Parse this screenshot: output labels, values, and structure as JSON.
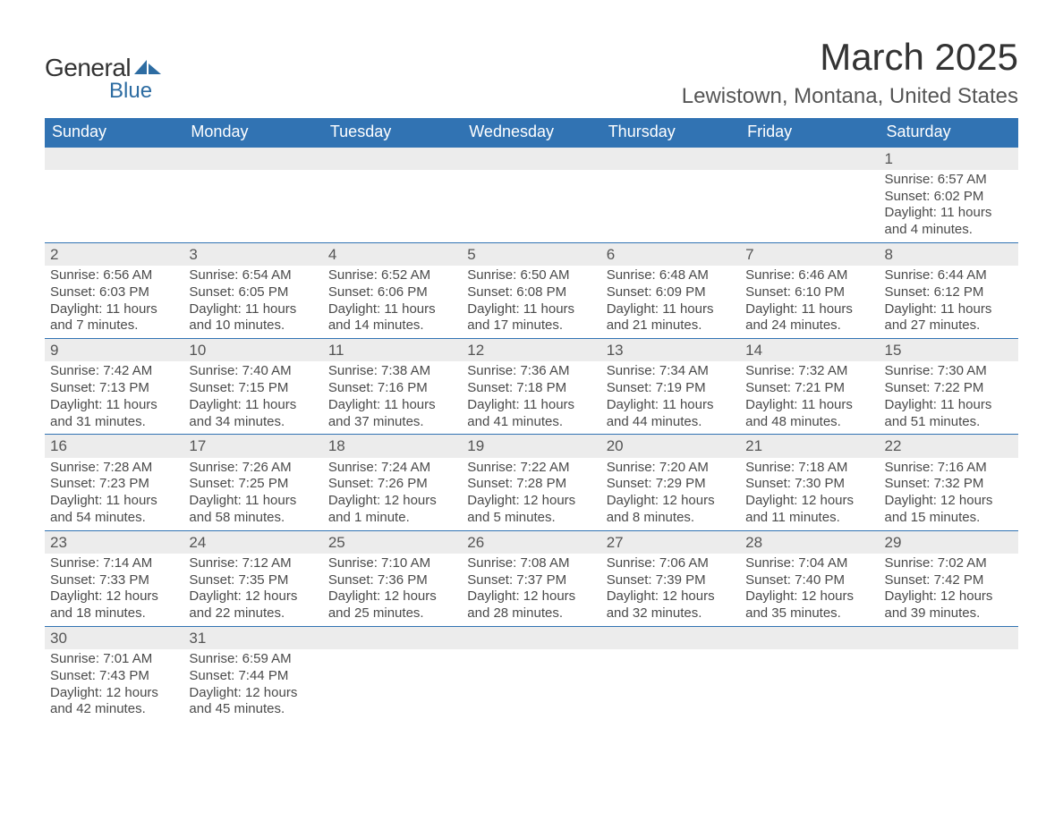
{
  "logo": {
    "text_top": "General",
    "text_bottom": "Blue",
    "icon_color": "#2d6ca2"
  },
  "title": "March 2025",
  "location": "Lewistown, Montana, United States",
  "colors": {
    "header_bg": "#3173b3",
    "header_text": "#ffffff",
    "daynum_bg": "#ececec",
    "border": "#3173b3",
    "text": "#4a4a4a"
  },
  "weekdays": [
    "Sunday",
    "Monday",
    "Tuesday",
    "Wednesday",
    "Thursday",
    "Friday",
    "Saturday"
  ],
  "weeks": [
    [
      null,
      null,
      null,
      null,
      null,
      null,
      {
        "n": "1",
        "sr": "Sunrise: 6:57 AM",
        "ss": "Sunset: 6:02 PM",
        "dl": "Daylight: 11 hours and 4 minutes."
      }
    ],
    [
      {
        "n": "2",
        "sr": "Sunrise: 6:56 AM",
        "ss": "Sunset: 6:03 PM",
        "dl": "Daylight: 11 hours and 7 minutes."
      },
      {
        "n": "3",
        "sr": "Sunrise: 6:54 AM",
        "ss": "Sunset: 6:05 PM",
        "dl": "Daylight: 11 hours and 10 minutes."
      },
      {
        "n": "4",
        "sr": "Sunrise: 6:52 AM",
        "ss": "Sunset: 6:06 PM",
        "dl": "Daylight: 11 hours and 14 minutes."
      },
      {
        "n": "5",
        "sr": "Sunrise: 6:50 AM",
        "ss": "Sunset: 6:08 PM",
        "dl": "Daylight: 11 hours and 17 minutes."
      },
      {
        "n": "6",
        "sr": "Sunrise: 6:48 AM",
        "ss": "Sunset: 6:09 PM",
        "dl": "Daylight: 11 hours and 21 minutes."
      },
      {
        "n": "7",
        "sr": "Sunrise: 6:46 AM",
        "ss": "Sunset: 6:10 PM",
        "dl": "Daylight: 11 hours and 24 minutes."
      },
      {
        "n": "8",
        "sr": "Sunrise: 6:44 AM",
        "ss": "Sunset: 6:12 PM",
        "dl": "Daylight: 11 hours and 27 minutes."
      }
    ],
    [
      {
        "n": "9",
        "sr": "Sunrise: 7:42 AM",
        "ss": "Sunset: 7:13 PM",
        "dl": "Daylight: 11 hours and 31 minutes."
      },
      {
        "n": "10",
        "sr": "Sunrise: 7:40 AM",
        "ss": "Sunset: 7:15 PM",
        "dl": "Daylight: 11 hours and 34 minutes."
      },
      {
        "n": "11",
        "sr": "Sunrise: 7:38 AM",
        "ss": "Sunset: 7:16 PM",
        "dl": "Daylight: 11 hours and 37 minutes."
      },
      {
        "n": "12",
        "sr": "Sunrise: 7:36 AM",
        "ss": "Sunset: 7:18 PM",
        "dl": "Daylight: 11 hours and 41 minutes."
      },
      {
        "n": "13",
        "sr": "Sunrise: 7:34 AM",
        "ss": "Sunset: 7:19 PM",
        "dl": "Daylight: 11 hours and 44 minutes."
      },
      {
        "n": "14",
        "sr": "Sunrise: 7:32 AM",
        "ss": "Sunset: 7:21 PM",
        "dl": "Daylight: 11 hours and 48 minutes."
      },
      {
        "n": "15",
        "sr": "Sunrise: 7:30 AM",
        "ss": "Sunset: 7:22 PM",
        "dl": "Daylight: 11 hours and 51 minutes."
      }
    ],
    [
      {
        "n": "16",
        "sr": "Sunrise: 7:28 AM",
        "ss": "Sunset: 7:23 PM",
        "dl": "Daylight: 11 hours and 54 minutes."
      },
      {
        "n": "17",
        "sr": "Sunrise: 7:26 AM",
        "ss": "Sunset: 7:25 PM",
        "dl": "Daylight: 11 hours and 58 minutes."
      },
      {
        "n": "18",
        "sr": "Sunrise: 7:24 AM",
        "ss": "Sunset: 7:26 PM",
        "dl": "Daylight: 12 hours and 1 minute."
      },
      {
        "n": "19",
        "sr": "Sunrise: 7:22 AM",
        "ss": "Sunset: 7:28 PM",
        "dl": "Daylight: 12 hours and 5 minutes."
      },
      {
        "n": "20",
        "sr": "Sunrise: 7:20 AM",
        "ss": "Sunset: 7:29 PM",
        "dl": "Daylight: 12 hours and 8 minutes."
      },
      {
        "n": "21",
        "sr": "Sunrise: 7:18 AM",
        "ss": "Sunset: 7:30 PM",
        "dl": "Daylight: 12 hours and 11 minutes."
      },
      {
        "n": "22",
        "sr": "Sunrise: 7:16 AM",
        "ss": "Sunset: 7:32 PM",
        "dl": "Daylight: 12 hours and 15 minutes."
      }
    ],
    [
      {
        "n": "23",
        "sr": "Sunrise: 7:14 AM",
        "ss": "Sunset: 7:33 PM",
        "dl": "Daylight: 12 hours and 18 minutes."
      },
      {
        "n": "24",
        "sr": "Sunrise: 7:12 AM",
        "ss": "Sunset: 7:35 PM",
        "dl": "Daylight: 12 hours and 22 minutes."
      },
      {
        "n": "25",
        "sr": "Sunrise: 7:10 AM",
        "ss": "Sunset: 7:36 PM",
        "dl": "Daylight: 12 hours and 25 minutes."
      },
      {
        "n": "26",
        "sr": "Sunrise: 7:08 AM",
        "ss": "Sunset: 7:37 PM",
        "dl": "Daylight: 12 hours and 28 minutes."
      },
      {
        "n": "27",
        "sr": "Sunrise: 7:06 AM",
        "ss": "Sunset: 7:39 PM",
        "dl": "Daylight: 12 hours and 32 minutes."
      },
      {
        "n": "28",
        "sr": "Sunrise: 7:04 AM",
        "ss": "Sunset: 7:40 PM",
        "dl": "Daylight: 12 hours and 35 minutes."
      },
      {
        "n": "29",
        "sr": "Sunrise: 7:02 AM",
        "ss": "Sunset: 7:42 PM",
        "dl": "Daylight: 12 hours and 39 minutes."
      }
    ],
    [
      {
        "n": "30",
        "sr": "Sunrise: 7:01 AM",
        "ss": "Sunset: 7:43 PM",
        "dl": "Daylight: 12 hours and 42 minutes."
      },
      {
        "n": "31",
        "sr": "Sunrise: 6:59 AM",
        "ss": "Sunset: 7:44 PM",
        "dl": "Daylight: 12 hours and 45 minutes."
      },
      null,
      null,
      null,
      null,
      null
    ]
  ]
}
